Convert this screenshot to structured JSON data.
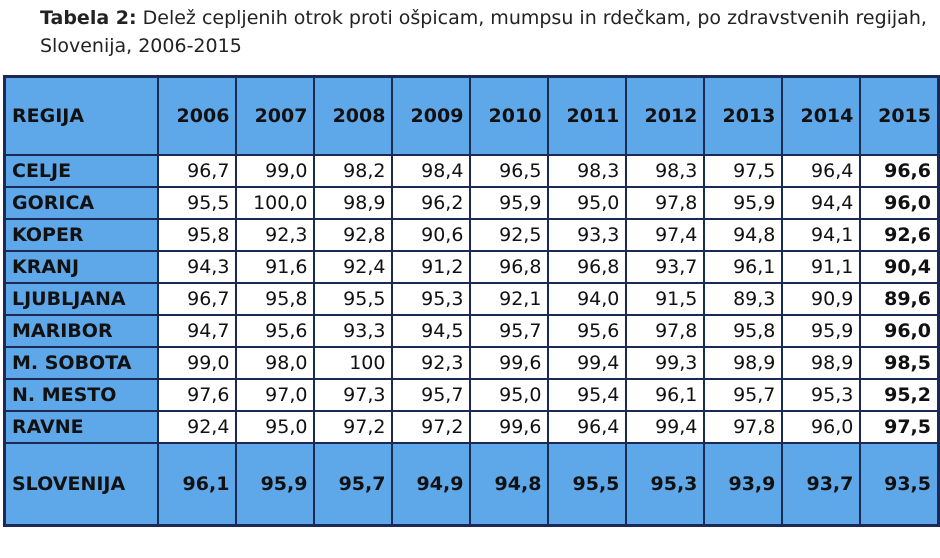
{
  "title": {
    "label": "Tabela 2:",
    "text": "Delež cepljenih otrok proti ošpicam, mumpsu in rdečkam, po zdravstvenih regijah, Slovenija, 2006-2015"
  },
  "table": {
    "header": [
      "REGIJA",
      "2006",
      "2007",
      "2008",
      "2009",
      "2010",
      "2011",
      "2012",
      "2013",
      "2014",
      "2015"
    ],
    "rows": [
      [
        "CELJE",
        "96,7",
        "99,0",
        "98,2",
        "98,4",
        "96,5",
        "98,3",
        "98,3",
        "97,5",
        "96,4",
        "96,6"
      ],
      [
        "GORICA",
        "95,5",
        "100,0",
        "98,9",
        "96,2",
        "95,9",
        "95,0",
        "97,8",
        "95,9",
        "94,4",
        "96,0"
      ],
      [
        "KOPER",
        "95,8",
        "92,3",
        "92,8",
        "90,6",
        "92,5",
        "93,3",
        "97,4",
        "94,8",
        "94,1",
        "92,6"
      ],
      [
        "KRANJ",
        "94,3",
        "91,6",
        "92,4",
        "91,2",
        "96,8",
        "96,8",
        "93,7",
        "96,1",
        "91,1",
        "90,4"
      ],
      [
        "LJUBLJANA",
        "96,7",
        "95,8",
        "95,5",
        "95,3",
        "92,1",
        "94,0",
        "91,5",
        "89,3",
        "90,9",
        "89,6"
      ],
      [
        "MARIBOR",
        "94,7",
        "95,6",
        "93,3",
        "94,5",
        "95,7",
        "95,6",
        "97,8",
        "95,8",
        "95,9",
        "96,0"
      ],
      [
        "M. SOBOTA",
        "99,0",
        "98,0",
        "100",
        "92,3",
        "99,6",
        "99,4",
        "99,3",
        "98,9",
        "98,9",
        "98,5"
      ],
      [
        "N. MESTO",
        "97,6",
        "97,0",
        "97,3",
        "95,7",
        "95,0",
        "95,4",
        "96,1",
        "95,7",
        "95,3",
        "95,2"
      ],
      [
        "RAVNE",
        "92,4",
        "95,0",
        "97,2",
        "97,2",
        "99,6",
        "96,4",
        "99,4",
        "97,8",
        "96,0",
        "97,5"
      ]
    ],
    "total": [
      "SLOVENIJA",
      "96,1",
      "95,9",
      "95,7",
      "94,9",
      "94,8",
      "95,5",
      "95,3",
      "93,9",
      "93,7",
      "93,5"
    ]
  }
}
